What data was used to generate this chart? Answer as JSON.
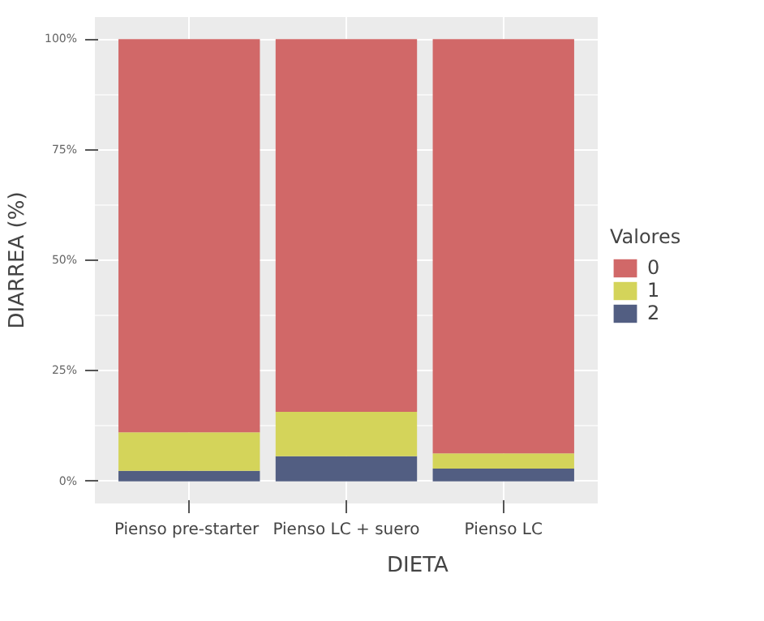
{
  "chart_data": {
    "type": "bar",
    "stacked": true,
    "xlabel": "DIETA",
    "ylabel": "DIARREA (%)",
    "legend_title": "Valores",
    "legend": "right",
    "categories": [
      "Pienso  pre-starter",
      "Pienso LC + suero",
      "Pienso LC"
    ],
    "series": [
      {
        "name": "2",
        "color": "#525e82",
        "values": [
          2.4,
          5.7,
          2.9
        ]
      },
      {
        "name": "1",
        "color": "#d4d45a",
        "values": [
          8.7,
          10.0,
          3.4
        ]
      },
      {
        "name": "0",
        "color": "#d16868",
        "values": [
          88.9,
          84.3,
          93.7
        ]
      }
    ],
    "ylim": [
      -5,
      105
    ],
    "yticks": [
      {
        "value": 0,
        "label": "0%"
      },
      {
        "value": 25,
        "label": "25%"
      },
      {
        "value": 50,
        "label": "50%"
      },
      {
        "value": 75,
        "label": "75%"
      },
      {
        "value": 100,
        "label": "100%"
      }
    ],
    "grid": true
  }
}
